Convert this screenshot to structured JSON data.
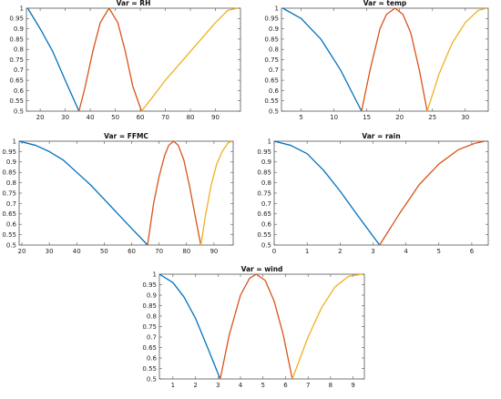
{
  "chart_data": [
    {
      "type": "line",
      "title": "Var = RH",
      "xlim": [
        14.5,
        100
      ],
      "ylim": [
        0.5,
        1
      ],
      "xticks": [
        20,
        30,
        40,
        50,
        60,
        70,
        80,
        90
      ],
      "yticks": [
        0.5,
        0.55,
        0.6,
        0.65,
        0.7,
        0.75,
        0.8,
        0.85,
        0.9,
        0.95,
        1
      ],
      "grid": false,
      "series": [
        {
          "color": "#0072BD",
          "x": [
            15,
            20,
            25,
            30,
            35.5
          ],
          "y": [
            1,
            0.9,
            0.79,
            0.65,
            0.5
          ]
        },
        {
          "color": "#D95319",
          "x": [
            35.5,
            38,
            41,
            44,
            47.5,
            51,
            54,
            57,
            60.5
          ],
          "y": [
            0.5,
            0.62,
            0.79,
            0.93,
            1,
            0.93,
            0.79,
            0.62,
            0.5
          ]
        },
        {
          "color": "#EDB120",
          "x": [
            60.5,
            65,
            70,
            75,
            80,
            85,
            90,
            95,
            99
          ],
          "y": [
            0.5,
            0.57,
            0.65,
            0.72,
            0.79,
            0.86,
            0.93,
            0.99,
            1
          ]
        }
      ]
    },
    {
      "type": "line",
      "title": "Var = temp",
      "xlim": [
        2,
        33.5
      ],
      "ylim": [
        0.5,
        1
      ],
      "xticks": [
        5,
        10,
        15,
        20,
        25,
        30
      ],
      "yticks": [
        0.5,
        0.55,
        0.6,
        0.65,
        0.7,
        0.75,
        0.8,
        0.85,
        0.9,
        0.95,
        1
      ],
      "grid": false,
      "series": [
        {
          "color": "#0072BD",
          "x": [
            2.2,
            5,
            8,
            11,
            14.2
          ],
          "y": [
            1,
            0.95,
            0.85,
            0.7,
            0.5
          ]
        },
        {
          "color": "#D95319",
          "x": [
            14.2,
            15.5,
            17,
            18,
            19.3,
            20.5,
            21.7,
            23,
            24.2
          ],
          "y": [
            0.5,
            0.7,
            0.9,
            0.97,
            1,
            0.97,
            0.88,
            0.7,
            0.5
          ]
        },
        {
          "color": "#EDB120",
          "x": [
            24.2,
            26,
            28,
            30,
            32,
            33.3
          ],
          "y": [
            0.5,
            0.68,
            0.83,
            0.93,
            0.99,
            1
          ]
        }
      ]
    },
    {
      "type": "line",
      "title": "Var = FFMC",
      "xlim": [
        19,
        97
      ],
      "ylim": [
        0.5,
        1
      ],
      "xticks": [
        20,
        30,
        40,
        50,
        60,
        70,
        80,
        90
      ],
      "yticks": [
        0.5,
        0.55,
        0.6,
        0.65,
        0.7,
        0.75,
        0.8,
        0.85,
        0.9,
        0.95,
        1
      ],
      "grid": false,
      "series": [
        {
          "color": "#0072BD",
          "x": [
            19,
            25,
            30,
            35,
            40,
            45,
            50,
            55,
            60,
            65.8
          ],
          "y": [
            1,
            0.98,
            0.95,
            0.91,
            0.85,
            0.79,
            0.72,
            0.65,
            0.58,
            0.5
          ]
        },
        {
          "color": "#D95319",
          "x": [
            65.8,
            68,
            70,
            72,
            73.5,
            75.3,
            77,
            79,
            81,
            83,
            85.2
          ],
          "y": [
            0.5,
            0.7,
            0.83,
            0.93,
            0.98,
            1,
            0.98,
            0.91,
            0.79,
            0.65,
            0.5
          ]
        },
        {
          "color": "#EDB120",
          "x": [
            85.2,
            87,
            89,
            91,
            93,
            95,
            96.5
          ],
          "y": [
            0.5,
            0.65,
            0.79,
            0.89,
            0.95,
            0.99,
            1
          ]
        }
      ]
    },
    {
      "type": "line",
      "title": "Var = rain",
      "xlim": [
        0,
        6.5
      ],
      "ylim": [
        0.5,
        1
      ],
      "xticks": [
        0,
        1,
        2,
        3,
        4,
        5,
        6
      ],
      "yticks": [
        0.5,
        0.55,
        0.6,
        0.65,
        0.7,
        0.75,
        0.8,
        0.85,
        0.9,
        0.95,
        1
      ],
      "grid": false,
      "series": [
        {
          "color": "#0072BD",
          "x": [
            0,
            0.5,
            1,
            1.5,
            2,
            2.5,
            3.2
          ],
          "y": [
            1,
            0.98,
            0.94,
            0.86,
            0.76,
            0.65,
            0.5
          ]
        },
        {
          "color": "#D95319",
          "x": [
            3.2,
            3.8,
            4.4,
            5,
            5.6,
            6.1,
            6.4
          ],
          "y": [
            0.5,
            0.65,
            0.79,
            0.89,
            0.96,
            0.99,
            1
          ]
        }
      ]
    },
    {
      "type": "line",
      "title": "Var = wind",
      "xlim": [
        0.4,
        9.5
      ],
      "ylim": [
        0.5,
        1
      ],
      "xticks": [
        1,
        2,
        3,
        4,
        5,
        6,
        7,
        8,
        9
      ],
      "yticks": [
        0.5,
        0.55,
        0.6,
        0.65,
        0.7,
        0.75,
        0.8,
        0.85,
        0.9,
        0.95,
        1
      ],
      "grid": false,
      "series": [
        {
          "color": "#0072BD",
          "x": [
            0.4,
            1,
            1.5,
            2,
            2.5,
            3.1
          ],
          "y": [
            1,
            0.96,
            0.89,
            0.79,
            0.66,
            0.5
          ]
        },
        {
          "color": "#D95319",
          "x": [
            3.1,
            3.5,
            4,
            4.4,
            4.7,
            5.1,
            5.5,
            5.9,
            6.3
          ],
          "y": [
            0.5,
            0.71,
            0.9,
            0.98,
            1,
            0.97,
            0.87,
            0.71,
            0.5
          ]
        },
        {
          "color": "#EDB120",
          "x": [
            6.3,
            7,
            7.6,
            8.2,
            8.8,
            9.4
          ],
          "y": [
            0.5,
            0.7,
            0.84,
            0.94,
            0.99,
            1
          ]
        }
      ]
    }
  ]
}
